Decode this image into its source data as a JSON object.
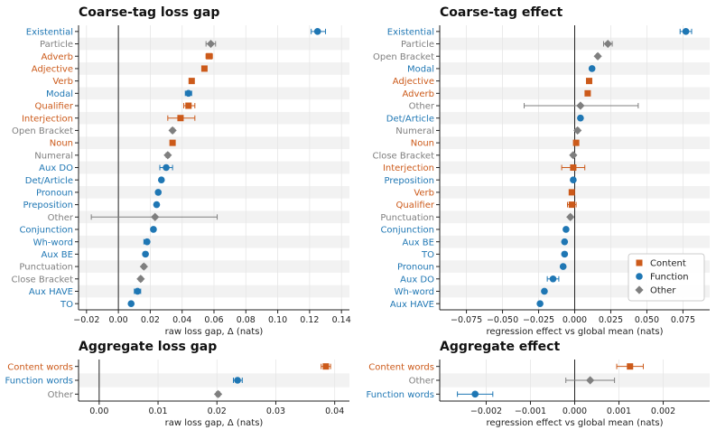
{
  "colors": {
    "content": "#cc5a1a",
    "function": "#1f77b4",
    "other": "#7f7f7f",
    "stripe": "#f2f2f2",
    "grid": "#e6e6e6"
  },
  "legend": [
    {
      "label": "Content",
      "group": "content",
      "marker": "square"
    },
    {
      "label": "Function",
      "group": "function",
      "marker": "circle"
    },
    {
      "label": "Other",
      "group": "other",
      "marker": "diamond"
    }
  ],
  "chart_data": [
    {
      "type": "scatter",
      "title": "Coarse-tag loss gap",
      "xlabel": "raw loss gap, Δ (nats)",
      "ylabel": "",
      "xlim": [
        -0.025,
        0.145
      ],
      "xticks": [
        -0.02,
        0.0,
        0.02,
        0.04,
        0.06,
        0.08,
        0.1,
        0.12,
        0.14
      ],
      "xtick_labels": [
        "−0.02",
        "0.00",
        "0.02",
        "0.04",
        "0.06",
        "0.08",
        "0.10",
        "0.12",
        "0.14"
      ],
      "zero_line": 0,
      "grid": true,
      "points": [
        {
          "label": "Existential",
          "group": "function",
          "x": 0.125,
          "lo": 0.121,
          "hi": 0.13
        },
        {
          "label": "Particle",
          "group": "other",
          "x": 0.058,
          "lo": 0.055,
          "hi": 0.061
        },
        {
          "label": "Adverb",
          "group": "content",
          "x": 0.057,
          "lo": 0.055,
          "hi": 0.059
        },
        {
          "label": "Adjective",
          "group": "content",
          "x": 0.054,
          "lo": 0.053,
          "hi": 0.055
        },
        {
          "label": "Verb",
          "group": "content",
          "x": 0.046,
          "lo": 0.045,
          "hi": 0.047
        },
        {
          "label": "Modal",
          "group": "function",
          "x": 0.044,
          "lo": 0.042,
          "hi": 0.046
        },
        {
          "label": "Qualifier",
          "group": "content",
          "x": 0.044,
          "lo": 0.041,
          "hi": 0.048
        },
        {
          "label": "Interjection",
          "group": "content",
          "x": 0.039,
          "lo": 0.031,
          "hi": 0.048
        },
        {
          "label": "Open Bracket",
          "group": "other",
          "x": 0.034,
          "lo": 0.033,
          "hi": 0.035
        },
        {
          "label": "Noun",
          "group": "content",
          "x": 0.034,
          "lo": 0.033,
          "hi": 0.035
        },
        {
          "label": "Numeral",
          "group": "other",
          "x": 0.031,
          "lo": 0.03,
          "hi": 0.032
        },
        {
          "label": "Aux DO",
          "group": "function",
          "x": 0.03,
          "lo": 0.026,
          "hi": 0.034
        },
        {
          "label": "Det/Article",
          "group": "function",
          "x": 0.027,
          "lo": 0.026,
          "hi": 0.028
        },
        {
          "label": "Pronoun",
          "group": "function",
          "x": 0.025,
          "lo": 0.024,
          "hi": 0.026
        },
        {
          "label": "Preposition",
          "group": "function",
          "x": 0.024,
          "lo": 0.023,
          "hi": 0.025
        },
        {
          "label": "Other",
          "group": "other",
          "x": 0.023,
          "lo": -0.017,
          "hi": 0.062
        },
        {
          "label": "Conjunction",
          "group": "function",
          "x": 0.022,
          "lo": 0.021,
          "hi": 0.023
        },
        {
          "label": "Wh-word",
          "group": "function",
          "x": 0.018,
          "lo": 0.016,
          "hi": 0.019
        },
        {
          "label": "Aux BE",
          "group": "function",
          "x": 0.017,
          "lo": 0.016,
          "hi": 0.018
        },
        {
          "label": "Punctuation",
          "group": "other",
          "x": 0.016,
          "lo": 0.015,
          "hi": 0.017
        },
        {
          "label": "Close Bracket",
          "group": "other",
          "x": 0.014,
          "lo": 0.013,
          "hi": 0.015
        },
        {
          "label": "Aux HAVE",
          "group": "function",
          "x": 0.012,
          "lo": 0.01,
          "hi": 0.014
        },
        {
          "label": "TO",
          "group": "function",
          "x": 0.008,
          "lo": 0.007,
          "hi": 0.009
        }
      ]
    },
    {
      "type": "scatter",
      "title": "Coarse-tag effect",
      "xlabel": "regression effect vs global mean (nats)",
      "ylabel": "",
      "xlim": [
        -0.0935,
        0.0935
      ],
      "xticks": [
        -0.075,
        -0.05,
        -0.025,
        0.0,
        0.025,
        0.05,
        0.075
      ],
      "xtick_labels": [
        "−0.075",
        "−0.050",
        "−0.025",
        "0.000",
        "0.025",
        "0.050",
        "0.075"
      ],
      "zero_line": 0,
      "grid": true,
      "legend_position": "lower-right",
      "points": [
        {
          "label": "Existential",
          "group": "function",
          "x": 0.077,
          "lo": 0.073,
          "hi": 0.081
        },
        {
          "label": "Particle",
          "group": "other",
          "x": 0.023,
          "lo": 0.02,
          "hi": 0.026
        },
        {
          "label": "Open Bracket",
          "group": "other",
          "x": 0.016,
          "lo": 0.015,
          "hi": 0.017
        },
        {
          "label": "Modal",
          "group": "function",
          "x": 0.012,
          "lo": 0.011,
          "hi": 0.013
        },
        {
          "label": "Adjective",
          "group": "content",
          "x": 0.01,
          "lo": 0.009,
          "hi": 0.011
        },
        {
          "label": "Adverb",
          "group": "content",
          "x": 0.009,
          "lo": 0.008,
          "hi": 0.01
        },
        {
          "label": "Other",
          "group": "other",
          "x": 0.004,
          "lo": -0.035,
          "hi": 0.044
        },
        {
          "label": "Det/Article",
          "group": "function",
          "x": 0.004,
          "lo": 0.003,
          "hi": 0.005
        },
        {
          "label": "Numeral",
          "group": "other",
          "x": 0.002,
          "lo": 0.001,
          "hi": 0.003
        },
        {
          "label": "Noun",
          "group": "content",
          "x": 0.001,
          "lo": 0.0,
          "hi": 0.002
        },
        {
          "label": "Close Bracket",
          "group": "other",
          "x": -0.001,
          "lo": -0.002,
          "hi": 0.0
        },
        {
          "label": "Interjection",
          "group": "content",
          "x": -0.001,
          "lo": -0.009,
          "hi": 0.007
        },
        {
          "label": "Preposition",
          "group": "function",
          "x": -0.001,
          "lo": -0.002,
          "hi": 0.0
        },
        {
          "label": "Verb",
          "group": "content",
          "x": -0.002,
          "lo": -0.003,
          "hi": -0.001
        },
        {
          "label": "Qualifier",
          "group": "content",
          "x": -0.002,
          "lo": -0.005,
          "hi": 0.001
        },
        {
          "label": "Punctuation",
          "group": "other",
          "x": -0.003,
          "lo": -0.004,
          "hi": -0.002
        },
        {
          "label": "Conjunction",
          "group": "function",
          "x": -0.006,
          "lo": -0.007,
          "hi": -0.005
        },
        {
          "label": "Aux BE",
          "group": "function",
          "x": -0.007,
          "lo": -0.008,
          "hi": -0.006
        },
        {
          "label": "TO",
          "group": "function",
          "x": -0.007,
          "lo": -0.008,
          "hi": -0.006
        },
        {
          "label": "Pronoun",
          "group": "function",
          "x": -0.008,
          "lo": -0.009,
          "hi": -0.007
        },
        {
          "label": "Aux DO",
          "group": "function",
          "x": -0.015,
          "lo": -0.019,
          "hi": -0.011
        },
        {
          "label": "Wh-word",
          "group": "function",
          "x": -0.021,
          "lo": -0.022,
          "hi": -0.02
        },
        {
          "label": "Aux HAVE",
          "group": "function",
          "x": -0.024,
          "lo": -0.025,
          "hi": -0.023
        }
      ]
    },
    {
      "type": "scatter",
      "title": "Aggregate loss gap",
      "xlabel": "raw loss gap, Δ (nats)",
      "ylabel": "",
      "xlim": [
        -0.0035,
        0.0425
      ],
      "xticks": [
        0.0,
        0.01,
        0.02,
        0.03,
        0.04
      ],
      "xtick_labels": [
        "0.00",
        "0.01",
        "0.02",
        "0.03",
        "0.04"
      ],
      "zero_line": 0,
      "grid": true,
      "points": [
        {
          "label": "Content words",
          "group": "content",
          "x": 0.0385,
          "lo": 0.0377,
          "hi": 0.0393
        },
        {
          "label": "Function words",
          "group": "function",
          "x": 0.0235,
          "lo": 0.0228,
          "hi": 0.0243
        },
        {
          "label": "Other",
          "group": "other",
          "x": 0.0202,
          "lo": 0.0199,
          "hi": 0.0205
        }
      ]
    },
    {
      "type": "scatter",
      "title": "Aggregate effect",
      "xlabel": "regression effect vs global mean (nats)",
      "ylabel": "",
      "xlim": [
        -0.00305,
        0.00305
      ],
      "xticks": [
        -0.002,
        -0.001,
        0.0,
        0.001,
        0.002
      ],
      "xtick_labels": [
        "−0.002",
        "−0.001",
        "0.000",
        "0.001",
        "0.002"
      ],
      "zero_line": 0,
      "grid": true,
      "points": [
        {
          "label": "Content words",
          "group": "content",
          "x": 0.00125,
          "lo": 0.00095,
          "hi": 0.00155
        },
        {
          "label": "Other",
          "group": "other",
          "x": 0.00035,
          "lo": -0.0002,
          "hi": 0.0009
        },
        {
          "label": "Function words",
          "group": "function",
          "x": -0.00225,
          "lo": -0.00265,
          "hi": -0.00185
        }
      ]
    }
  ]
}
